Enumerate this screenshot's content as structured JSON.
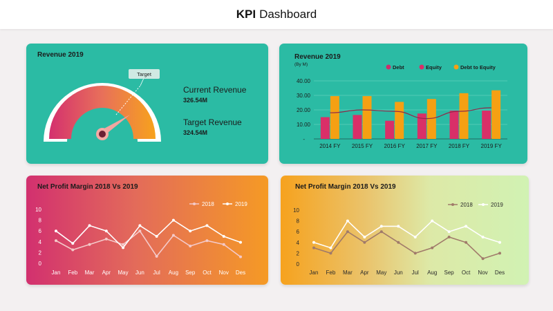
{
  "header": {
    "title_bold": "KPI",
    "title_rest": "Dashboard"
  },
  "gauge_panel": {
    "title": "Revenue 2019",
    "target_label": "Target",
    "current_label": "Current Revenue",
    "current_value": "326.54M",
    "target_revenue_label": "Target Revenue",
    "target_value": "324.54M"
  },
  "bar_panel": {
    "title": "Revenue  2019",
    "subtitle": "(By M)"
  },
  "npm_panel_1": {
    "title": "Net Profit Margin 2018 Vs 2019"
  },
  "npm_panel_2": {
    "title": "Net Profit Margin 2018 Vs 2019"
  },
  "colors": {
    "teal": "#2bbba4",
    "debt": "#cc2f6c",
    "equity": "#d92f68",
    "debt_to_equity": "#f5a013",
    "trend_line": "#8e2a4a"
  },
  "chart_data": [
    {
      "type": "bar",
      "title": "Revenue  2019",
      "subtitle": "(By M)",
      "categories": [
        "2014 FY",
        "2015 FY",
        "2016 FY",
        "2017 FY",
        "2018 FY",
        "2019 FY"
      ],
      "y_ticks": [
        "-",
        "10.00",
        "20.00",
        "30.00",
        "40.00"
      ],
      "ylim": [
        0,
        40
      ],
      "grid": true,
      "legend_position": "top",
      "series": [
        {
          "name": "Debt",
          "type": "line",
          "values": [
            18,
            20,
            19,
            14,
            19,
            21.5
          ]
        },
        {
          "name": "Equity",
          "type": "bar",
          "values": [
            15,
            16.5,
            12.5,
            17.5,
            19.5,
            19.5
          ]
        },
        {
          "name": "Debt to Equity",
          "type": "bar",
          "values": [
            29.5,
            29.5,
            25.5,
            27.5,
            31.5,
            33.5
          ]
        }
      ]
    },
    {
      "type": "line",
      "title": "Net Profit Margin 2018 Vs 2019",
      "categories": [
        "Jan",
        "Feb",
        "Mar",
        "Apr",
        "May",
        "Jun",
        "Jul",
        "Aug",
        "Sep",
        "Oct",
        "Nov",
        "Des"
      ],
      "y_ticks": [
        "0",
        "2",
        "4",
        "6",
        "8",
        "10"
      ],
      "ylim": [
        0,
        10
      ],
      "legend_position": "top-right",
      "series": [
        {
          "name": "2018",
          "values": [
            4.2,
            2.5,
            3.5,
            4.5,
            3.5,
            6.0,
            1.3,
            5.2,
            3.2,
            4.2,
            3.5,
            1.2
          ]
        },
        {
          "name": "2019",
          "values": [
            6.0,
            3.7,
            7.0,
            6.0,
            2.9,
            7.0,
            5.0,
            8.0,
            6.0,
            7.0,
            5.0,
            3.9
          ]
        }
      ]
    },
    {
      "type": "line",
      "title": "Net Profit Margin 2018 Vs 2019",
      "categories": [
        "Jan",
        "Feb",
        "Mar",
        "Apr",
        "May",
        "Jun",
        "Jul",
        "Aug",
        "Sep",
        "Oct",
        "Nov",
        "Des"
      ],
      "y_ticks": [
        "0",
        "2",
        "4",
        "6",
        "8",
        "10"
      ],
      "ylim": [
        0,
        10
      ],
      "legend_position": "top-right",
      "series": [
        {
          "name": "2018",
          "values": [
            3.0,
            2.0,
            6.0,
            4.0,
            6.0,
            4.0,
            2.0,
            3.0,
            5.0,
            4.0,
            1.0,
            2.0
          ]
        },
        {
          "name": "2019",
          "values": [
            4.0,
            3.0,
            8.0,
            5.0,
            7.0,
            7.0,
            5.0,
            8.0,
            6.0,
            7.0,
            5.0,
            4.0
          ]
        }
      ]
    }
  ]
}
